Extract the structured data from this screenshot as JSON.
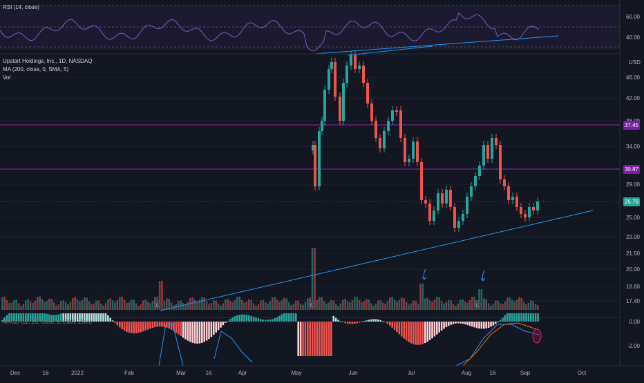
{
  "symbol": {
    "title": "Upstart Holdings, Inc., 1D, NASDAQ",
    "indicator_ma": "MA (200, close, 0, SMA, 5)",
    "indicator_vol": "Vol",
    "currency": "USD"
  },
  "rsi": {
    "label": "RSI (14, close)",
    "scale": [
      "60.00",
      "40.00"
    ]
  },
  "macd": {
    "label": "MACD (12, 26, close, 9, EMA, EMA)",
    "scale": [
      "0.00",
      "-2.00"
    ]
  },
  "price_axis": {
    "ticks": [
      "46.00",
      "42.00",
      "38.00",
      "34.00",
      "29.00",
      "25.00",
      "23.00",
      "21.50",
      "20.00",
      "18.60",
      "17.40"
    ]
  },
  "badges": {
    "r1": {
      "value": "37.45",
      "color": "#7b1fa2"
    },
    "r2": {
      "value": "30.87",
      "color": "#7b1fa2"
    },
    "last": {
      "value": "26.76",
      "color": "#26a69a"
    }
  },
  "time_axis": [
    "Dec",
    "16",
    "2022",
    "Feb",
    "Mar",
    "16",
    "Apr",
    "May",
    "Jun",
    "Jul",
    "Aug",
    "16",
    "Sep",
    "Oct"
  ],
  "colors": {
    "up": "#26a69a",
    "down": "#ef5350",
    "level_line": "#9c27b0",
    "trendline": "#2196f3",
    "background": "#131722"
  },
  "annotations": {
    "arrows": 2,
    "circle_highlight": "MACD divergence"
  }
}
